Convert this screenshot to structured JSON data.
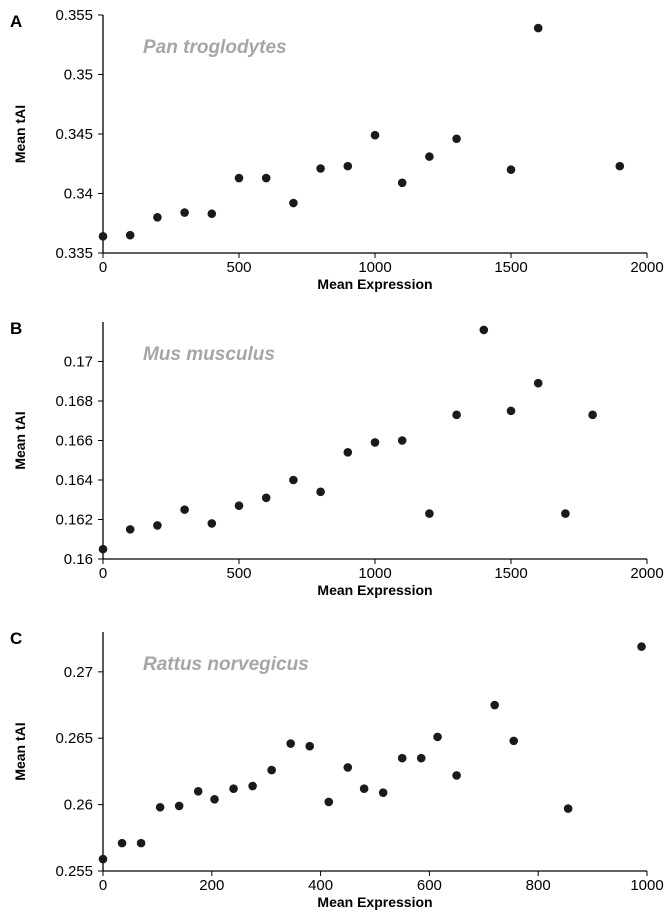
{
  "chart_data": [
    {
      "type": "scatter",
      "panel_label": "A",
      "title": "Pan troglodytes",
      "xlabel": "Mean Expression",
      "ylabel": "Mean tAI",
      "xlim": [
        0,
        2000
      ],
      "ylim": [
        0.335,
        0.355
      ],
      "xticks": [
        "0",
        "500",
        "1000",
        "1500",
        "2000"
      ],
      "yticks": [
        "0.335",
        "0.34",
        "0.345",
        "0.35",
        "0.355"
      ],
      "grid": false,
      "marker_color": "#1a1a1a",
      "points": [
        {
          "x": 0,
          "y": 0.3364
        },
        {
          "x": 100,
          "y": 0.3365
        },
        {
          "x": 200,
          "y": 0.338
        },
        {
          "x": 300,
          "y": 0.3384
        },
        {
          "x": 400,
          "y": 0.3383
        },
        {
          "x": 500,
          "y": 0.3413
        },
        {
          "x": 600,
          "y": 0.3413
        },
        {
          "x": 700,
          "y": 0.3392
        },
        {
          "x": 800,
          "y": 0.3421
        },
        {
          "x": 900,
          "y": 0.3423
        },
        {
          "x": 1000,
          "y": 0.3449
        },
        {
          "x": 1100,
          "y": 0.3409
        },
        {
          "x": 1200,
          "y": 0.3431
        },
        {
          "x": 1300,
          "y": 0.3446
        },
        {
          "x": 1500,
          "y": 0.342
        },
        {
          "x": 1600,
          "y": 0.3539
        },
        {
          "x": 1900,
          "y": 0.3423
        }
      ]
    },
    {
      "type": "scatter",
      "panel_label": "B",
      "title": "Mus musculus",
      "xlabel": "Mean Expression",
      "ylabel": "Mean tAI",
      "xlim": [
        0,
        2000
      ],
      "ylim": [
        0.16,
        0.172
      ],
      "xticks": [
        "0",
        "500",
        "1000",
        "1500",
        "2000"
      ],
      "yticks": [
        "0.16",
        "0.162",
        "0.164",
        "0.166",
        "0.168",
        "0.17"
      ],
      "grid": false,
      "marker_color": "#1a1a1a",
      "points": [
        {
          "x": 0,
          "y": 0.1605
        },
        {
          "x": 100,
          "y": 0.1615
        },
        {
          "x": 200,
          "y": 0.1617
        },
        {
          "x": 300,
          "y": 0.1625
        },
        {
          "x": 400,
          "y": 0.1618
        },
        {
          "x": 500,
          "y": 0.1627
        },
        {
          "x": 600,
          "y": 0.1631
        },
        {
          "x": 700,
          "y": 0.164
        },
        {
          "x": 800,
          "y": 0.1634
        },
        {
          "x": 900,
          "y": 0.1654
        },
        {
          "x": 1000,
          "y": 0.1659
        },
        {
          "x": 1100,
          "y": 0.166
        },
        {
          "x": 1200,
          "y": 0.1623
        },
        {
          "x": 1300,
          "y": 0.1673
        },
        {
          "x": 1400,
          "y": 0.1716
        },
        {
          "x": 1500,
          "y": 0.1675
        },
        {
          "x": 1600,
          "y": 0.1689
        },
        {
          "x": 1700,
          "y": 0.1623
        },
        {
          "x": 1800,
          "y": 0.1673
        }
      ]
    },
    {
      "type": "scatter",
      "panel_label": "C",
      "title": "Rattus norvegicus",
      "xlabel": "Mean Expression",
      "ylabel": "Mean tAI",
      "xlim": [
        0,
        1000
      ],
      "ylim": [
        0.255,
        0.273
      ],
      "xticks": [
        "0",
        "200",
        "400",
        "600",
        "800",
        "1000"
      ],
      "yticks": [
        "0.255",
        "0.26",
        "0.265",
        "0.27"
      ],
      "grid": false,
      "marker_color": "#1a1a1a",
      "points": [
        {
          "x": 0,
          "y": 0.2559
        },
        {
          "x": 35,
          "y": 0.2571
        },
        {
          "x": 70,
          "y": 0.2571
        },
        {
          "x": 105,
          "y": 0.2598
        },
        {
          "x": 140,
          "y": 0.2599
        },
        {
          "x": 175,
          "y": 0.261
        },
        {
          "x": 205,
          "y": 0.2604
        },
        {
          "x": 240,
          "y": 0.2612
        },
        {
          "x": 275,
          "y": 0.2614
        },
        {
          "x": 310,
          "y": 0.2626
        },
        {
          "x": 345,
          "y": 0.2646
        },
        {
          "x": 380,
          "y": 0.2644
        },
        {
          "x": 415,
          "y": 0.2602
        },
        {
          "x": 450,
          "y": 0.2628
        },
        {
          "x": 480,
          "y": 0.2612
        },
        {
          "x": 515,
          "y": 0.2609
        },
        {
          "x": 550,
          "y": 0.2635
        },
        {
          "x": 585,
          "y": 0.2635
        },
        {
          "x": 615,
          "y": 0.2651
        },
        {
          "x": 650,
          "y": 0.2622
        },
        {
          "x": 720,
          "y": 0.2675
        },
        {
          "x": 755,
          "y": 0.2648
        },
        {
          "x": 855,
          "y": 0.2597
        },
        {
          "x": 990,
          "y": 0.2719
        }
      ]
    }
  ]
}
